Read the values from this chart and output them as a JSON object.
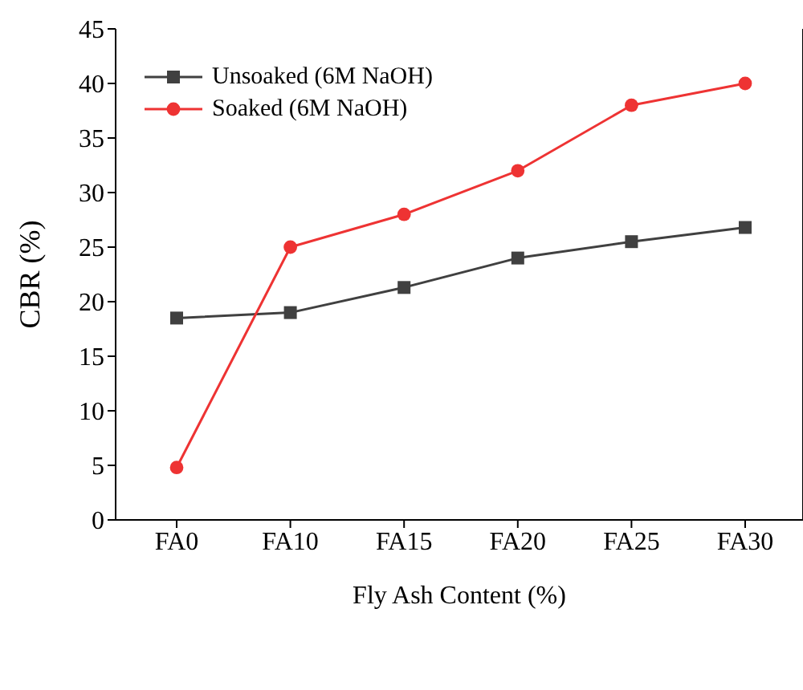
{
  "chart_data": {
    "type": "line",
    "xlabel": "Fly Ash Content (%)",
    "ylabel": "CBR  (%)",
    "categories": [
      "FA0",
      "FA10",
      "FA15",
      "FA20",
      "FA25",
      "FA30"
    ],
    "series": [
      {
        "name": "Unsoaked (6M NaOH)",
        "color": "#404040",
        "marker": "square",
        "values": [
          18.5,
          19,
          21.3,
          24,
          25.5,
          26.8
        ]
      },
      {
        "name": "Soaked (6M NaOH)",
        "color": "#ee3333",
        "marker": "circle",
        "values": [
          4.8,
          25,
          28,
          32,
          38,
          40
        ]
      }
    ],
    "ylim": [
      0,
      45
    ],
    "yticks": [
      0,
      5,
      10,
      15,
      20,
      25,
      30,
      35,
      40,
      45
    ],
    "grid": false,
    "legend": "top left",
    "line_style": "solid"
  }
}
